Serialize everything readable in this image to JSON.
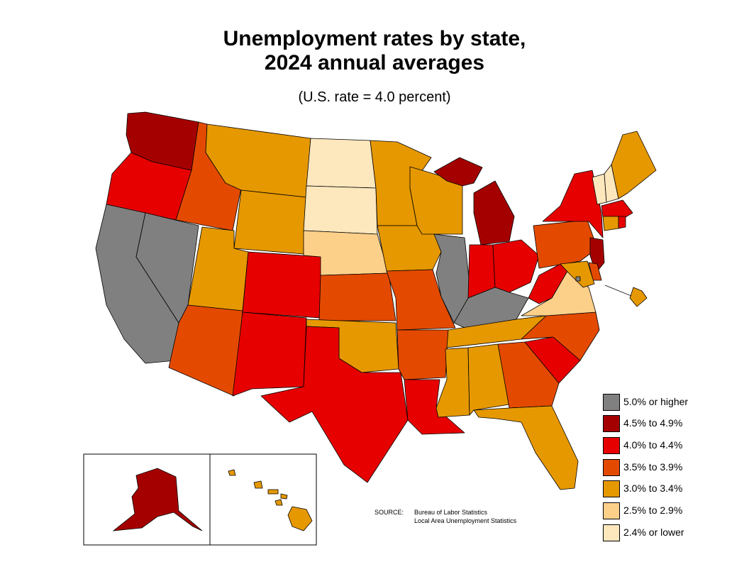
{
  "title_line1": "Unemployment rates by state,",
  "title_line2": "2024 annual averages",
  "subtitle": "(U.S. rate = 4.0 percent)",
  "legend": [
    {
      "label": "5.0% or higher",
      "color": "#808080"
    },
    {
      "label": "4.5% to 4.9%",
      "color": "#a50000"
    },
    {
      "label": "4.0% to 4.4%",
      "color": "#e60000"
    },
    {
      "label": "3.5% to 3.9%",
      "color": "#e34a00"
    },
    {
      "label": "3.0% to 3.4%",
      "color": "#e69800"
    },
    {
      "label": "2.5% to 2.9%",
      "color": "#fdd08a"
    },
    {
      "label": "2.4% or lower",
      "color": "#fde7bd"
    }
  ],
  "source": {
    "key": "SOURCE:",
    "line1": "Bureau of Labor Statistics",
    "line2": "Local Area Unemployment Statistics"
  },
  "states": {
    "WA": 1,
    "OR": 2,
    "CA": 0,
    "NV": 0,
    "ID": 3,
    "MT": 4,
    "WY": 4,
    "UT": 4,
    "AZ": 3,
    "CO": 2,
    "NM": 2,
    "ND": 6,
    "SD": 6,
    "NE": 5,
    "KS": 3,
    "OK": 4,
    "TX": 2,
    "MN": 4,
    "IA": 4,
    "MO": 3,
    "AR": 3,
    "LA": 2,
    "WI": 4,
    "IL": 0,
    "MI": 1,
    "IN": 2,
    "OH": 2,
    "KY": 0,
    "TN": 4,
    "MS": 4,
    "AL": 4,
    "GA": 3,
    "FL": 4,
    "SC": 2,
    "NC": 3,
    "VA": 5,
    "WV": 2,
    "PA": 3,
    "NY": 2,
    "NJ": 1,
    "DE": 3,
    "MD": 4,
    "ME": 4,
    "NH": 6,
    "VT": 6,
    "MA": 2,
    "CT": 4,
    "RI": 2,
    "AK": 1,
    "HI": 4,
    "DC": 0
  }
}
